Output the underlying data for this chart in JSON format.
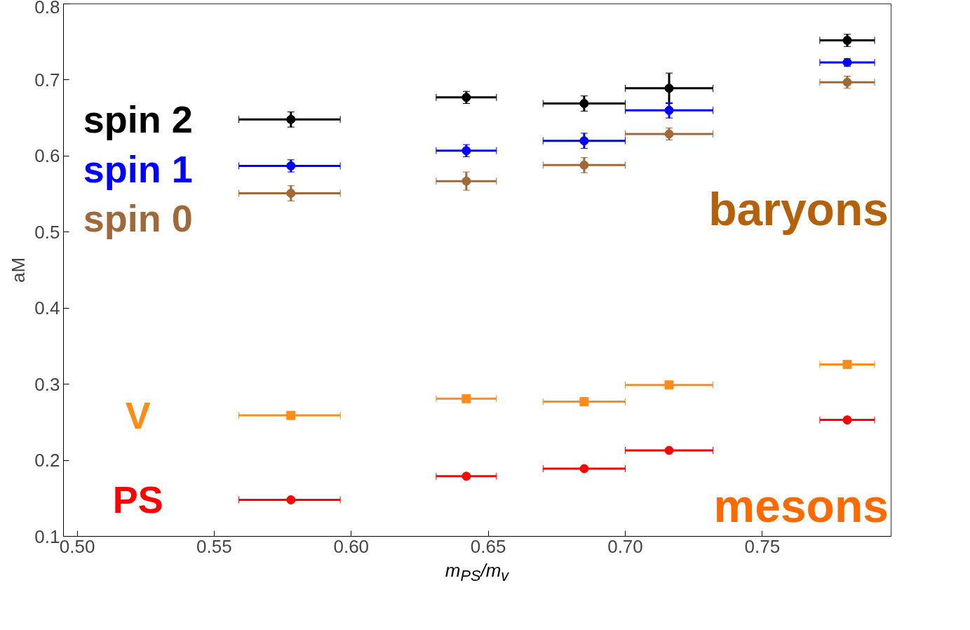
{
  "chart_data": {
    "type": "scatter",
    "xlabel": "m$_{PS}$/m$_{v}$",
    "ylabel": "aM",
    "xlim": [
      0.495,
      0.797
    ],
    "ylim": [
      0.1,
      0.8
    ],
    "xticks": [
      {
        "value": 0.5,
        "label": "0.50"
      },
      {
        "value": 0.55,
        "label": "0.55"
      },
      {
        "value": 0.6,
        "label": "0.60"
      },
      {
        "value": 0.65,
        "label": "0.65"
      },
      {
        "value": 0.7,
        "label": "0.70"
      },
      {
        "value": 0.75,
        "label": "0.75"
      }
    ],
    "yticks": [
      0.1,
      0.2,
      0.3,
      0.4,
      0.5,
      0.6,
      0.7,
      0.8
    ],
    "grid": false,
    "legend": "left",
    "annotations": [
      "baryons",
      "mesons"
    ],
    "series": [
      {
        "name": "spin 2",
        "color": "#000000",
        "marker": "circle",
        "x": [
          0.578,
          0.642,
          0.685,
          0.716,
          0.781
        ],
        "values": [
          0.648,
          0.677,
          0.669,
          0.689,
          0.752
        ],
        "errors": [
          0.01,
          0.008,
          0.01,
          0.02,
          0.008
        ],
        "xerrors": [
          [
            0.559,
            0.596
          ],
          [
            0.631,
            0.653
          ],
          [
            0.67,
            0.7
          ],
          [
            0.7,
            0.732
          ],
          [
            0.771,
            0.791
          ]
        ]
      },
      {
        "name": "spin 1",
        "color": "#0000ff",
        "marker": "circle",
        "x": [
          0.578,
          0.642,
          0.685,
          0.716,
          0.781
        ],
        "values": [
          0.587,
          0.607,
          0.62,
          0.66,
          0.723
        ],
        "errors": [
          0.008,
          0.008,
          0.01,
          0.01,
          0.005
        ],
        "xerrors": [
          [
            0.559,
            0.596
          ],
          [
            0.631,
            0.653
          ],
          [
            0.67,
            0.7
          ],
          [
            0.7,
            0.732
          ],
          [
            0.771,
            0.791
          ]
        ]
      },
      {
        "name": "spin 0",
        "color": "#a0693a",
        "marker": "circle",
        "x": [
          0.578,
          0.642,
          0.685,
          0.716,
          0.781
        ],
        "values": [
          0.551,
          0.567,
          0.588,
          0.629,
          0.697
        ],
        "errors": [
          0.01,
          0.012,
          0.01,
          0.008,
          0.008
        ],
        "xerrors": [
          [
            0.559,
            0.596
          ],
          [
            0.631,
            0.653
          ],
          [
            0.67,
            0.7
          ],
          [
            0.7,
            0.732
          ],
          [
            0.771,
            0.791
          ]
        ]
      },
      {
        "name": "V",
        "color": "#ff8c1a",
        "marker": "square",
        "x": [
          0.578,
          0.642,
          0.685,
          0.716,
          0.781
        ],
        "values": [
          0.259,
          0.281,
          0.277,
          0.299,
          0.326
        ],
        "errors": [
          0.005,
          0.003,
          0.004,
          0.004,
          0.002
        ],
        "xerrors": [
          [
            0.559,
            0.596
          ],
          [
            0.631,
            0.653
          ],
          [
            0.67,
            0.7
          ],
          [
            0.7,
            0.732
          ],
          [
            0.771,
            0.791
          ]
        ]
      },
      {
        "name": "PS",
        "color": "#ff0000",
        "marker": "circle",
        "x": [
          0.578,
          0.642,
          0.685,
          0.716,
          0.781
        ],
        "values": [
          0.148,
          0.179,
          0.189,
          0.213,
          0.253
        ],
        "errors": [
          0.002,
          0.002,
          0.002,
          0.002,
          0.002
        ],
        "xerrors": [
          [
            0.559,
            0.596
          ],
          [
            0.631,
            0.653
          ],
          [
            0.67,
            0.7
          ],
          [
            0.7,
            0.732
          ],
          [
            0.771,
            0.791
          ]
        ]
      }
    ]
  }
}
